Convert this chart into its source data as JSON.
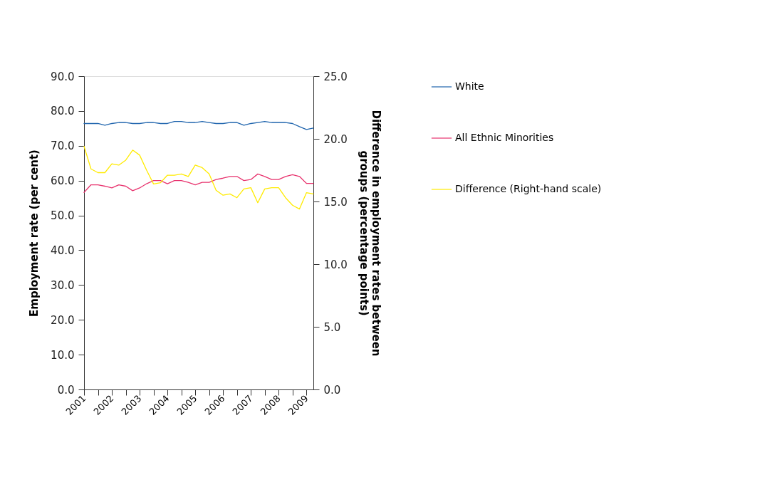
{
  "chart_data": {
    "type": "line",
    "ylabel": "Employment rate (per cent)",
    "y2label": "Difference in employment rates between groups (percentage points)",
    "categories": [
      "2001",
      null,
      null,
      null,
      "2002",
      null,
      null,
      null,
      "2003",
      null,
      null,
      null,
      "2004",
      null,
      null,
      null,
      "2005",
      null,
      null,
      null,
      "2006",
      null,
      null,
      null,
      "2007",
      null,
      null,
      null,
      "2008",
      null,
      null,
      null,
      "2009",
      null
    ],
    "series": [
      {
        "name": "White",
        "color": "#1f64ad",
        "values": [
          76.4,
          76.4,
          76.4,
          75.9,
          76.4,
          76.7,
          76.7,
          76.4,
          76.4,
          76.7,
          76.7,
          76.4,
          76.4,
          77.0,
          77.0,
          76.7,
          76.7,
          77.0,
          76.7,
          76.4,
          76.4,
          76.7,
          76.7,
          75.9,
          76.4,
          76.7,
          77.0,
          76.7,
          76.7,
          76.7,
          76.4,
          75.5,
          74.7,
          75.1
        ]
      },
      {
        "name": "All Ethnic Minorities",
        "color": "#e8336e",
        "values": [
          56.6,
          58.8,
          58.8,
          58.4,
          57.9,
          58.8,
          58.4,
          57.1,
          57.9,
          59.1,
          60.0,
          60.0,
          59.1,
          60.0,
          60.0,
          59.5,
          58.8,
          59.5,
          59.5,
          60.3,
          60.7,
          61.2,
          61.2,
          60.0,
          60.3,
          61.9,
          61.2,
          60.3,
          60.3,
          61.2,
          61.7,
          61.2,
          59.2,
          59.2
        ]
      },
      {
        "name": "Difference (Right-hand scale)",
        "color": "#ffeb00",
        "axis": "y2",
        "values": [
          19.4,
          17.6,
          17.3,
          17.3,
          18.0,
          17.9,
          18.3,
          19.1,
          18.7,
          17.5,
          16.4,
          16.5,
          17.1,
          17.1,
          17.2,
          17.0,
          17.9,
          17.7,
          17.2,
          15.9,
          15.5,
          15.6,
          15.3,
          16.0,
          16.1,
          14.9,
          16.0,
          16.1,
          16.1,
          15.3,
          14.7,
          14.4,
          15.7,
          15.6
        ]
      }
    ],
    "ylim": [
      0,
      90
    ],
    "yticks": [
      {
        "value": 0,
        "label": "0.0"
      },
      {
        "value": 10,
        "label": "10.0"
      },
      {
        "value": 20,
        "label": "20.0"
      },
      {
        "value": 30,
        "label": "30.0"
      },
      {
        "value": 40,
        "label": "40.0"
      },
      {
        "value": 50,
        "label": "50.0"
      },
      {
        "value": 60,
        "label": "60.0"
      },
      {
        "value": 70,
        "label": "70.0"
      },
      {
        "value": 80,
        "label": "80.0"
      },
      {
        "value": 90,
        "label": "90.0"
      }
    ],
    "y2lim": [
      0,
      25
    ],
    "y2ticks": [
      {
        "value": 0,
        "label": "0.0"
      },
      {
        "value": 5,
        "label": "5.0"
      },
      {
        "value": 10,
        "label": "10.0"
      },
      {
        "value": 15,
        "label": "15.0"
      },
      {
        "value": 20,
        "label": "20.0"
      },
      {
        "value": 25,
        "label": "25.0"
      }
    ],
    "grid": false,
    "legend": "right",
    "marker": "none",
    "line_style": "solid"
  }
}
